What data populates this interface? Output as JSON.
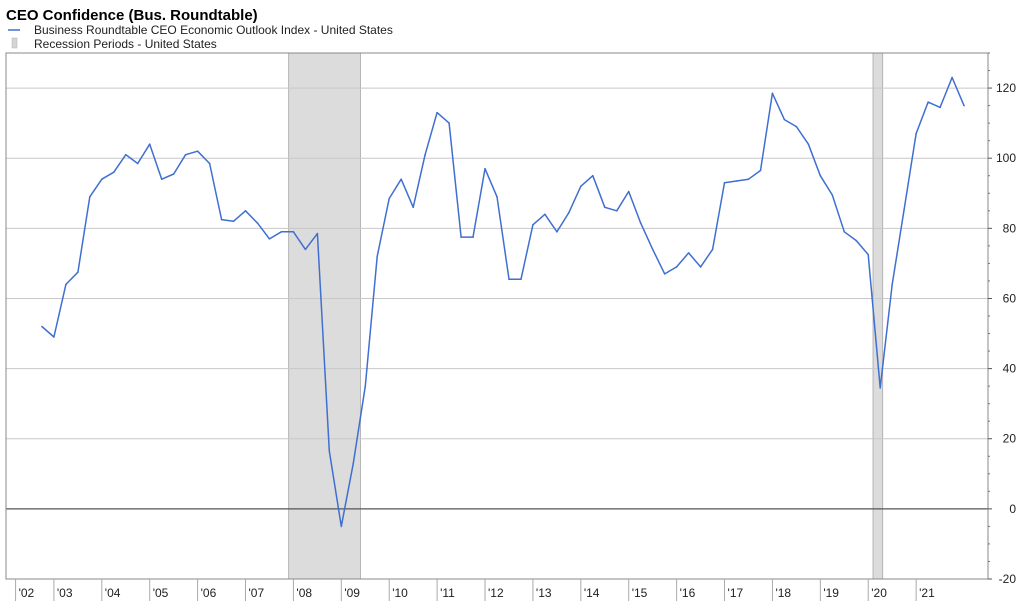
{
  "chart_data": {
    "type": "line",
    "title": "CEO Confidence (Bus. Roundtable)",
    "legend": [
      {
        "label": "Business Roundtable CEO Economic Outlook Index - United States",
        "symbol": "line",
        "color": "#3f6fd1"
      },
      {
        "label": "Recession Periods - United States",
        "symbol": "bar",
        "color": "#d4d4d4"
      }
    ],
    "legend_position": "top-left",
    "y_axis_side": "right",
    "ylim": [
      -20,
      130
    ],
    "yticks": [
      120,
      100,
      80,
      60,
      40,
      20,
      0,
      -20
    ],
    "xlim": [
      2002.0,
      2022.5
    ],
    "xticks": [
      {
        "x": 2002.2,
        "label": "'02"
      },
      {
        "x": 2003.0,
        "label": "'03"
      },
      {
        "x": 2004.0,
        "label": "'04"
      },
      {
        "x": 2005.0,
        "label": "'05"
      },
      {
        "x": 2006.0,
        "label": "'06"
      },
      {
        "x": 2007.0,
        "label": "'07"
      },
      {
        "x": 2008.0,
        "label": "'08"
      },
      {
        "x": 2009.0,
        "label": "'09"
      },
      {
        "x": 2010.0,
        "label": "'10"
      },
      {
        "x": 2011.0,
        "label": "'11"
      },
      {
        "x": 2012.0,
        "label": "'12"
      },
      {
        "x": 2013.0,
        "label": "'13"
      },
      {
        "x": 2014.0,
        "label": "'14"
      },
      {
        "x": 2015.0,
        "label": "'15"
      },
      {
        "x": 2016.0,
        "label": "'16"
      },
      {
        "x": 2017.0,
        "label": "'17"
      },
      {
        "x": 2018.0,
        "label": "'18"
      },
      {
        "x": 2019.0,
        "label": "'19"
      },
      {
        "x": 2020.0,
        "label": "'20"
      },
      {
        "x": 2021.0,
        "label": "'21"
      }
    ],
    "grid": true,
    "zero_line": true,
    "recessions": [
      {
        "start": 2007.9,
        "end": 2009.4
      },
      {
        "start": 2020.1,
        "end": 2020.3
      }
    ],
    "series": [
      {
        "color": "#3f6fd1",
        "points": [
          [
            2002.75,
            52
          ],
          [
            2003.0,
            49
          ],
          [
            2003.25,
            64
          ],
          [
            2003.5,
            67.5
          ],
          [
            2003.75,
            89
          ],
          [
            2004.0,
            94
          ],
          [
            2004.25,
            96
          ],
          [
            2004.5,
            101
          ],
          [
            2004.75,
            98.5
          ],
          [
            2005.0,
            104
          ],
          [
            2005.25,
            94
          ],
          [
            2005.5,
            95.5
          ],
          [
            2005.75,
            101
          ],
          [
            2006.0,
            102
          ],
          [
            2006.25,
            98.5
          ],
          [
            2006.5,
            82.5
          ],
          [
            2006.75,
            82
          ],
          [
            2007.0,
            85
          ],
          [
            2007.25,
            81.5
          ],
          [
            2007.5,
            77
          ],
          [
            2007.75,
            79
          ],
          [
            2008.0,
            79
          ],
          [
            2008.25,
            74
          ],
          [
            2008.5,
            78.5
          ],
          [
            2008.75,
            16.5
          ],
          [
            2009.0,
            -5
          ],
          [
            2009.25,
            13
          ],
          [
            2009.5,
            35
          ],
          [
            2009.75,
            72
          ],
          [
            2010.0,
            88.5
          ],
          [
            2010.25,
            94
          ],
          [
            2010.5,
            86
          ],
          [
            2010.75,
            101
          ],
          [
            2011.0,
            113
          ],
          [
            2011.25,
            110
          ],
          [
            2011.5,
            77.5
          ],
          [
            2011.75,
            77.5
          ],
          [
            2012.0,
            97
          ],
          [
            2012.25,
            89
          ],
          [
            2012.5,
            65.5
          ],
          [
            2012.75,
            65.5
          ],
          [
            2013.0,
            81
          ],
          [
            2013.25,
            84
          ],
          [
            2013.5,
            79
          ],
          [
            2013.75,
            84.5
          ],
          [
            2014.0,
            92
          ],
          [
            2014.25,
            95
          ],
          [
            2014.5,
            86
          ],
          [
            2014.75,
            85
          ],
          [
            2015.0,
            90.5
          ],
          [
            2015.25,
            81.5
          ],
          [
            2015.5,
            74
          ],
          [
            2015.75,
            67
          ],
          [
            2016.0,
            69
          ],
          [
            2016.25,
            73
          ],
          [
            2016.5,
            69
          ],
          [
            2016.75,
            74
          ],
          [
            2017.0,
            93
          ],
          [
            2017.25,
            93.5
          ],
          [
            2017.5,
            94
          ],
          [
            2017.75,
            96.5
          ],
          [
            2018.0,
            118.5
          ],
          [
            2018.25,
            111
          ],
          [
            2018.5,
            109
          ],
          [
            2018.75,
            104
          ],
          [
            2019.0,
            95
          ],
          [
            2019.25,
            89.5
          ],
          [
            2019.5,
            79
          ],
          [
            2019.75,
            76.5
          ],
          [
            2020.0,
            72.5
          ],
          [
            2020.25,
            34.5
          ],
          [
            2020.5,
            64
          ],
          [
            2020.75,
            85.5
          ],
          [
            2021.0,
            107
          ],
          [
            2021.25,
            116
          ],
          [
            2021.5,
            114.5
          ],
          [
            2021.75,
            123
          ],
          [
            2022.0,
            115
          ]
        ]
      }
    ]
  }
}
